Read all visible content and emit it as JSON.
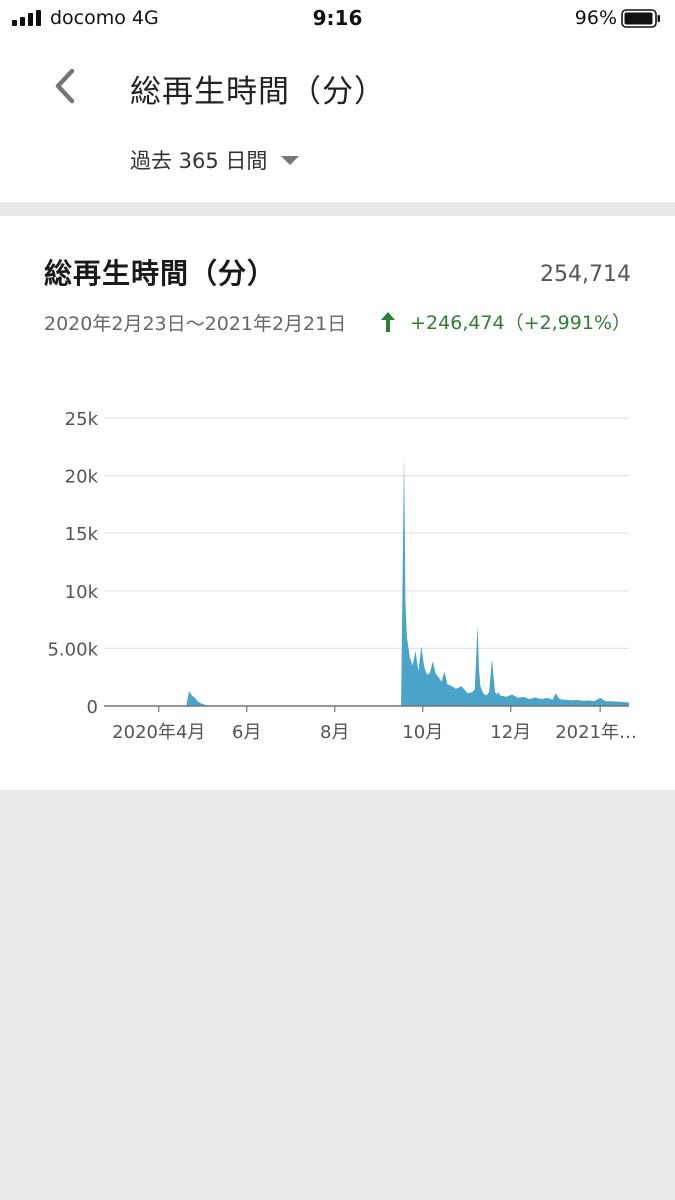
{
  "status_bar": {
    "carrier": "docomo   4G",
    "time": "9:16",
    "battery": "96%",
    "icons": [
      "signal-icon",
      "battery-icon"
    ]
  },
  "app_bar": {
    "back_icon": "chevron-left-icon",
    "title": "総再生時間（分）",
    "range_label": "過去 365 日間",
    "range_icon": "caret-down-icon"
  },
  "card": {
    "title": "総再生時間（分）",
    "total": "254,714",
    "date_range": "2020年2月23日〜2021年2月21日",
    "change": "+246,474（+2,991%）",
    "change_icon": "arrow-up-icon",
    "accent_color": "#2e7d32"
  },
  "chart_data": {
    "type": "area",
    "color": "#4aa3c8",
    "y_ticks": [
      "0",
      "5.00k",
      "10k",
      "15k",
      "20k",
      "25k"
    ],
    "x_tick_labels": [
      "2020年4月",
      "6月",
      "8月",
      "10月",
      "12月",
      "2021年…"
    ],
    "ylim": [
      0,
      25000
    ],
    "grid": true,
    "x": [
      "2020-02-23",
      "2020-03-31",
      "2020-04-20",
      "2020-04-22",
      "2020-04-24",
      "2020-04-26",
      "2020-04-28",
      "2020-04-30",
      "2020-05-02",
      "2020-05-04",
      "2020-05-06",
      "2020-05-10",
      "2020-07-01",
      "2020-09-16",
      "2020-09-18",
      "2020-09-19",
      "2020-09-20",
      "2020-09-22",
      "2020-09-24",
      "2020-09-26",
      "2020-09-28",
      "2020-09-30",
      "2020-10-02",
      "2020-10-04",
      "2020-10-06",
      "2020-10-08",
      "2020-10-10",
      "2020-10-12",
      "2020-10-14",
      "2020-10-16",
      "2020-10-18",
      "2020-10-20",
      "2020-10-24",
      "2020-10-28",
      "2020-11-01",
      "2020-11-04",
      "2020-11-06",
      "2020-11-08",
      "2020-11-09",
      "2020-11-10",
      "2020-11-12",
      "2020-11-14",
      "2020-11-16",
      "2020-11-18",
      "2020-11-20",
      "2020-11-21",
      "2020-11-22",
      "2020-11-24",
      "2020-11-28",
      "2020-12-02",
      "2020-12-06",
      "2020-12-10",
      "2020-12-14",
      "2020-12-18",
      "2020-12-22",
      "2020-12-26",
      "2020-12-30",
      "2021-01-01",
      "2021-01-04",
      "2021-01-08",
      "2021-01-12",
      "2021-01-16",
      "2021-01-20",
      "2021-01-24",
      "2021-01-28",
      "2021-02-01",
      "2021-02-05",
      "2021-02-09",
      "2021-02-13",
      "2021-02-17",
      "2021-02-21"
    ],
    "values": [
      0,
      0,
      0,
      1300,
      900,
      700,
      400,
      250,
      150,
      80,
      40,
      0,
      0,
      0,
      22000,
      9000,
      6000,
      4200,
      3500,
      4800,
      3000,
      5200,
      3400,
      2700,
      2900,
      3900,
      2800,
      2500,
      2100,
      3000,
      1900,
      1800,
      1500,
      1700,
      1100,
      1200,
      1400,
      7000,
      3200,
      1700,
      1100,
      900,
      1200,
      4100,
      1300,
      1000,
      1200,
      900,
      800,
      1000,
      700,
      800,
      600,
      750,
      600,
      700,
      550,
      1100,
      600,
      550,
      500,
      520,
      450,
      480,
      430,
      700,
      420,
      400,
      380,
      350,
      300
    ]
  }
}
